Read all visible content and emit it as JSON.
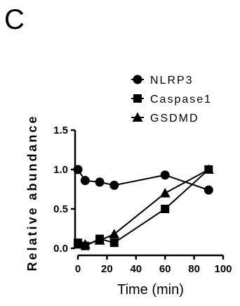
{
  "panel_label": "C",
  "chart_data": {
    "type": "line",
    "xlabel": "Time (min)",
    "ylabel": "Relative abundance",
    "xlim": [
      0,
      100
    ],
    "ylim": [
      0,
      1.5
    ],
    "x_ticks": [
      0,
      20,
      40,
      60,
      80,
      100
    ],
    "x_tick_labels": [
      "0",
      "20",
      "40",
      "60",
      "80",
      "100"
    ],
    "y_ticks": [
      0,
      0.5,
      1.0,
      1.5
    ],
    "y_tick_labels": [
      "0.0",
      "0.5",
      "1.0",
      "1.5"
    ],
    "grid": false,
    "legend_position": "top-right",
    "series": [
      {
        "name": "NLRP3",
        "marker": "circle",
        "x": [
          0,
          5,
          15,
          25,
          60,
          90
        ],
        "y": [
          1.0,
          0.86,
          0.84,
          0.8,
          0.93,
          0.74
        ]
      },
      {
        "name": "Caspase1",
        "marker": "square",
        "x": [
          0,
          5,
          15,
          25,
          60,
          90
        ],
        "y": [
          0.07,
          0.03,
          0.12,
          0.07,
          0.5,
          1.0
        ]
      },
      {
        "name": "GSDMD",
        "marker": "triangle",
        "x": [
          0,
          5,
          15,
          25,
          60,
          90
        ],
        "y": [
          0.05,
          0.05,
          0.1,
          0.18,
          0.7,
          1.0
        ]
      }
    ]
  }
}
